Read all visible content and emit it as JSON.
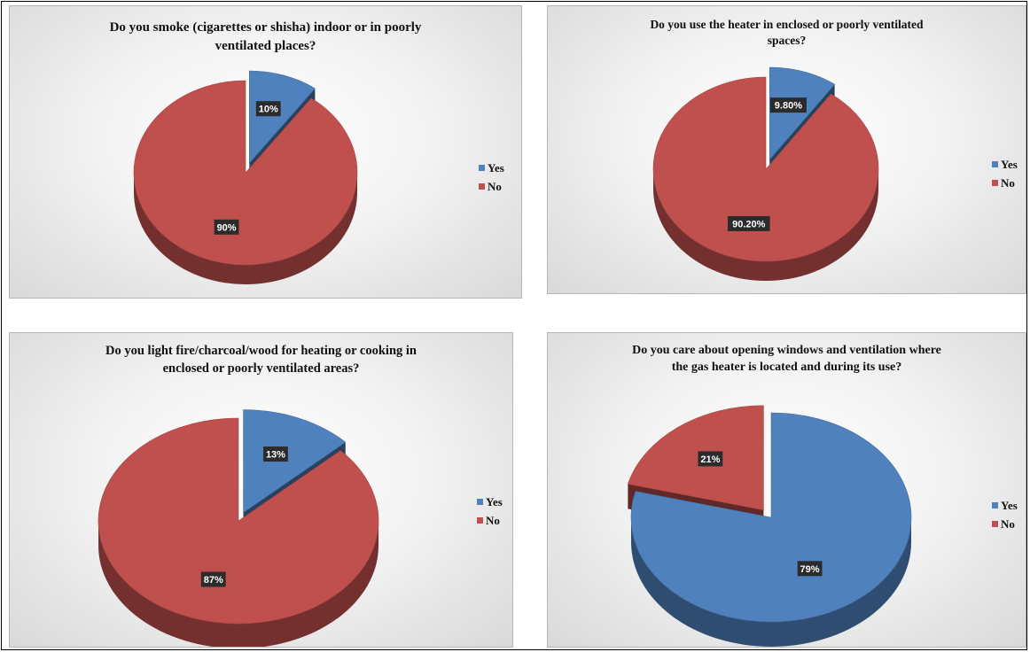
{
  "chart_data": [
    {
      "type": "pie",
      "title": "Do you smoke (cigarettes or shisha) indoor or in poorly\nventilated places?",
      "categories": [
        "Yes",
        "No"
      ],
      "values": [
        10,
        90
      ],
      "data_labels": [
        "10%",
        "90%"
      ],
      "colors": [
        "#4f81bd",
        "#c0504d"
      ],
      "exploded": "Yes",
      "legend": "right"
    },
    {
      "type": "pie",
      "title": "Do you use the heater in enclosed or poorly ventilated\nspaces?",
      "categories": [
        "Yes",
        "No"
      ],
      "values": [
        9.8,
        90.2
      ],
      "data_labels": [
        "9.80%",
        "90.20%"
      ],
      "colors": [
        "#4f81bd",
        "#c0504d"
      ],
      "exploded": "Yes",
      "legend": "right"
    },
    {
      "type": "pie",
      "title": "Do you light fire/charcoal/wood  for heating or cooking in\nenclosed or poorly ventilated areas?",
      "categories": [
        "Yes",
        "No"
      ],
      "values": [
        13,
        87
      ],
      "data_labels": [
        "13%",
        "87%"
      ],
      "colors": [
        "#4f81bd",
        "#c0504d"
      ],
      "exploded": "Yes",
      "legend": "right"
    },
    {
      "type": "pie",
      "title": "Do you care about opening windows and ventilation where\nthe gas heater is located and during its use?",
      "categories": [
        "Yes",
        "No"
      ],
      "values": [
        79,
        21
      ],
      "data_labels": [
        "79%",
        "21%"
      ],
      "colors": [
        "#4f81bd",
        "#c0504d"
      ],
      "exploded": "No",
      "legend": "right"
    }
  ]
}
